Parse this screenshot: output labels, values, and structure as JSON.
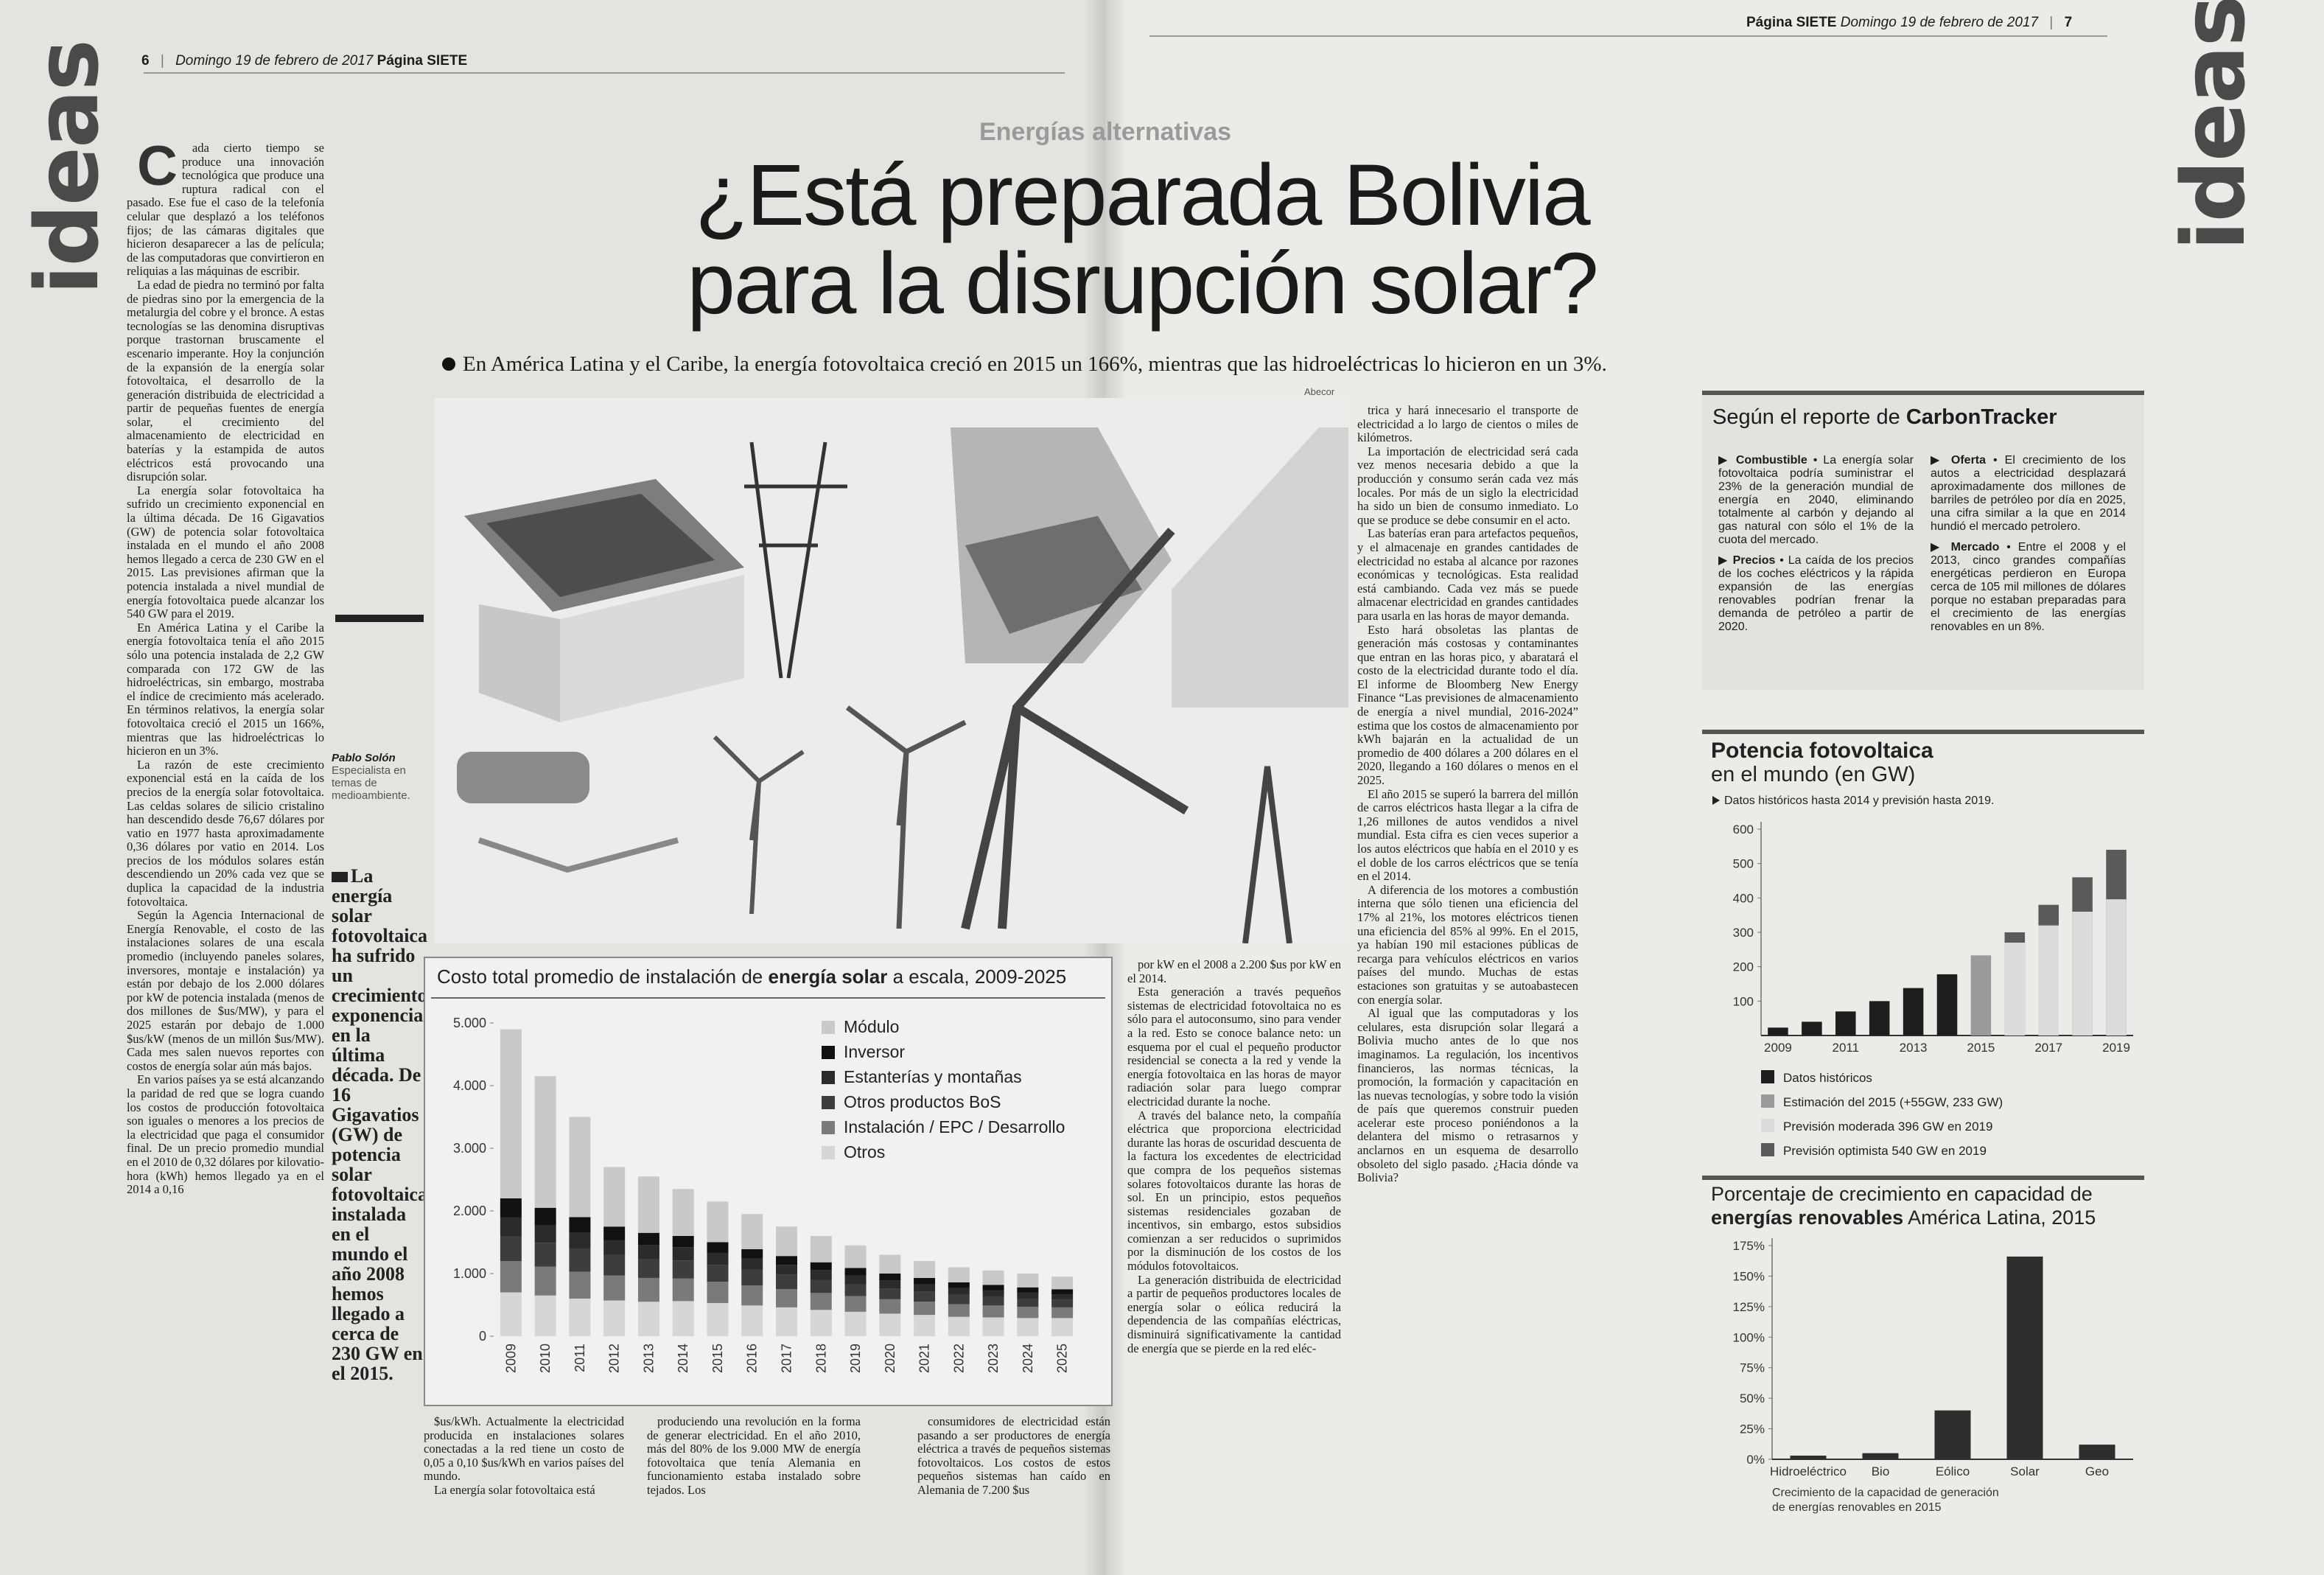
{
  "header_left": {
    "page": "6",
    "date": "Domingo 19 de febrero de 2017",
    "paper": "Página SIETE"
  },
  "header_right": {
    "paper": "Página SIETE",
    "date": "Domingo 19 de febrero de 2017",
    "page": "7"
  },
  "section": "ideas",
  "kicker": "Energías alternativas",
  "title": [
    "¿Está preparada Bolivia",
    "para la disrupción solar?"
  ],
  "subtitle": "En América Latina y el Caribe, la energía fotovoltaica creció en 2015 un 166%, mientras que las hidroeléctricas lo hicieron en un 3%.",
  "photo_credit": "Abecor",
  "author": {
    "name": "Pablo Solón",
    "role": "Especialista en temas de medioambiente."
  },
  "pull_quote": "La energía solar fotovoltaica ha sufrido un crecimiento exponencial en la última década. De 16 Gigavatios (GW) de potencia solar fotovoltaica instalada en el mundo el año 2008 hemos llegado a cerca de 230 GW en el 2015.",
  "columns": [
    [
      "Cada cierto tiempo se produce una innovación tecnológica que produce una ruptura radical con el pasado. Ese fue el caso de la telefonía celular que desplazó a los teléfonos fijos; de las cámaras digitales que hicieron desaparecer a las de película; de las computadoras que convirtieron en reliquias a las máquinas de escribir.",
      "La edad de piedra no terminó por falta de piedras sino por la emergencia de la metalurgia del cobre y el bronce. A estas tecnologías se las denomina disruptivas porque trastornan bruscamente el escenario imperante. Hoy la conjunción de la expansión de la energía solar fotovoltaica, el desarrollo de la generación distribuida de electricidad a partir de pequeñas fuentes de energía solar, el crecimiento del almacenamiento de electricidad en baterías y la estampida de autos eléctricos está provocando una disrupción solar.",
      "La energía solar fotovoltaica ha sufrido un crecimiento exponencial en la última década. De 16 Gigavatios (GW) de potencia solar fotovoltaica instalada en el mundo el año 2008 hemos llegado a cerca de 230 GW en el 2015. Las previsiones afirman que la potencia instalada a nivel mundial de energía fotovoltaica puede alcanzar los 540 GW para el 2019.",
      "En América Latina y el Caribe la energía fotovoltaica tenía el año 2015 sólo una potencia instalada de 2,2 GW comparada con 172 GW de las hidroeléctricas, sin embargo, mostraba el índice de crecimiento más acelerado. En términos relativos, la energía solar fotovoltaica creció el 2015 un 166%, mientras que las hidroeléctricas lo hicieron en un 3%.",
      "La razón de este crecimiento exponencial está en la caída de los precios de la energía solar fotovoltaica. Las celdas solares de silicio cristalino han descendido desde 76,67 dólares por vatio en 1977 hasta aproximadamente 0,36 dólares por vatio en 2014. Los precios de los módulos solares están descendiendo un 20% cada vez que se duplica la capacidad de la industria fotovoltaica.",
      "Según la Agencia Internacional de Energía Renovable, el costo de las instalaciones solares de una escala promedio (incluyendo paneles solares, inversores, montaje e instalación) ya están por debajo de los 2.000 dólares por kW de potencia instalada (menos de dos millones de $us/MW), y para el 2025 estarán por debajo de 1.000 $us/kW (menos de un millón $us/MW). Cada mes salen nuevos reportes con costos de energía solar aún más bajos.",
      "En varios países ya se está alcanzando la paridad de red que se logra cuando los costos de producción fotovoltaica son iguales o menores a los precios de la electricidad que paga el consumidor final. De un precio promedio mundial en el 2010 de 0,32 dólares por kilovatio-hora (kWh) hemos llegado ya en el 2014 a 0,16"
    ],
    [
      "$us/kWh. Actualmente la electricidad producida en instalaciones solares conectadas a la red tiene un costo de 0,05 a 0,10 $us/kWh en varios países del mundo.",
      "La energía solar fotovoltaica está"
    ],
    [
      "produciendo una revolución en la forma de generar electricidad. En el año 2010, más del 80% de los 9.000 MW de energía fotovoltaica que tenía Alemania en funcionamiento estaba instalado sobre tejados. Los"
    ],
    [
      "consumidores de electricidad están pasando a ser productores de energía eléctrica a través de pequeños sistemas fotovoltaicos. Los costos de estos pequeños sistemas han caído en Alemania de 7.200 $us"
    ],
    [
      "por kW en el 2008 a 2.200 $us por kW en el 2014.",
      "Esta generación a través pequeños sistemas de electricidad fotovoltaica no es sólo para el autoconsumo, sino para vender a la red. Esto se conoce balance neto: un esquema por el cual el pequeño productor residencial se conecta a la red y vende la energía fotovoltaica en las horas de mayor radiación solar para luego comprar electricidad durante la noche.",
      "A través del balance neto, la compañía eléctrica que proporciona electricidad durante las horas de oscuridad descuenta de la factura los excedentes de electricidad que compra de los pequeños sistemas solares fotovoltaicos durante las horas de sol. En un principio, estos pequeños sistemas residenciales gozaban de incentivos, sin embargo, estos subsidios comienzan a ser reducidos o suprimidos por la disminución de los costos de los módulos fotovoltaicos.",
      "La generación distribuida de electricidad a partir de pequeños productores locales de energía solar o eólica reducirá la dependencia de las compañías eléctricas, disminuirá significativamente la cantidad de energía que se pierde en la red eléc-"
    ],
    [
      "trica y hará innecesario el transporte de electricidad a lo largo de cientos o miles de kilómetros.",
      "La importación de electricidad será cada vez menos necesaria debido a que la producción y consumo serán cada vez más locales. Por más de un siglo la electricidad ha sido un bien de consumo inmediato. Lo que se produce se debe consumir en el acto.",
      "Las baterías eran para artefactos pequeños, y el almacenaje en grandes cantidades de electricidad no estaba al alcance por razones económicas y tecnológicas. Esta realidad está cambiando. Cada vez más se puede almacenar electricidad en grandes cantidades para usarla en las horas de mayor demanda.",
      "Esto hará obsoletas las plantas de generación más costosas y contaminantes que entran en las horas pico, y abaratará el costo de la electricidad durante todo el día. El informe de Bloomberg New Energy Finance “Las previsiones de almacenamiento de energía a nivel mundial, 2016-2024” estima que los costos de almacenamiento por kWh bajarán en la actualidad de un promedio de 400 dólares a 200 dólares en el 2020, llegando a 160 dólares o menos en el 2025.",
      "El año 2015 se superó la barrera del millón de carros eléctricos hasta llegar a la cifra de 1,26 millones de autos vendidos a nivel mundial. Esta cifra es cien veces superior a los autos eléctricos que había en el 2010 y es el doble de los carros eléctricos que se tenía en el 2014.",
      "A diferencia de los motores a combustión interna que sólo tienen una eficiencia del 17% al 21%, los motores eléctricos tienen una eficiencia del 85% al 99%. En el 2015, ya habían 190 mil estaciones públicas de recarga para vehículos eléctricos en varios países del mundo. Muchas de estas estaciones son gratuitas y se autoabastecen con energía solar.",
      "Al igual que las computadoras y los celulares, esta disrupción solar llegará a Bolivia mucho antes de lo que nos imaginamos. La regulación, los incentivos financieros, las normas técnicas, la promoción, la formación y capacitación en las nuevas tecnologías, y sobre todo la visión de país que queremos construir pueden acelerar este proceso poniéndonos a la delantera del mismo o retrasarnos y anclarnos en un esquema de desarrollo obsoleto del siglo pasado. ¿Hacia dónde va Bolivia?"
    ]
  ],
  "sidebar": {
    "title_prefix": "Según el reporte de",
    "title_brand": "CarbonTracker",
    "items": [
      {
        "label": "Combustible",
        "text": "La energía solar fotovoltaica podría suministrar el 23% de la generación mundial de energía en 2040, eliminando totalmente al carbón y dejando al gas natural con sólo el 1% de la cuota del mercado."
      },
      {
        "label": "Precios",
        "text": "La caída de los precios de los coches eléctricos y la rápida expansión de las energías renovables podrían frenar la demanda de petróleo a partir de 2020."
      },
      {
        "label": "Oferta",
        "text": "El crecimiento de los autos a electricidad desplazará aproximadamente dos millones de barriles de petróleo por día en 2025, una cifra similar a la que en 2014 hundió el mercado petrolero."
      },
      {
        "label": "Mercado",
        "text": "Entre el 2008 y el 2013, cinco grandes compañías energéticas perdieron en Europa cerca de 105 mil millones de dólares porque no estaban preparadas para el crecimiento de las energías renovables en un 8%."
      }
    ]
  },
  "chart_data": [
    {
      "type": "bar",
      "stacked": true,
      "title": [
        "Costo total promedio de instalación de ",
        "energía solar",
        " a escala, 2009-2025"
      ],
      "categories": [
        "2009",
        "2010",
        "2011",
        "2012",
        "2013",
        "2014",
        "2015",
        "2016",
        "2017",
        "2018",
        "2019",
        "2020",
        "2021",
        "2022",
        "2023",
        "2024",
        "2025"
      ],
      "series": [
        {
          "name": "Módulo",
          "color": "#c9c9c9",
          "values": [
            2700,
            2100,
            1600,
            950,
            900,
            750,
            650,
            560,
            470,
            420,
            360,
            300,
            270,
            240,
            230,
            220,
            200
          ]
        },
        {
          "name": "Inversor",
          "color": "#111111",
          "values": [
            300,
            280,
            250,
            220,
            200,
            180,
            170,
            150,
            140,
            130,
            120,
            110,
            100,
            90,
            90,
            80,
            80
          ]
        },
        {
          "name": "Estanterías y montañas",
          "color": "#2b2b2b",
          "values": [
            300,
            280,
            260,
            230,
            220,
            210,
            190,
            180,
            160,
            150,
            140,
            130,
            120,
            110,
            100,
            100,
            90
          ]
        },
        {
          "name": "Otros productos BoS",
          "color": "#3d3d3d",
          "values": [
            400,
            380,
            360,
            330,
            300,
            290,
            270,
            250,
            230,
            210,
            190,
            170,
            160,
            150,
            140,
            130,
            120
          ]
        },
        {
          "name": "Instalación / EPC / Desarrollo",
          "color": "#7a7a7a",
          "values": [
            500,
            460,
            430,
            400,
            380,
            360,
            340,
            320,
            290,
            270,
            250,
            230,
            210,
            200,
            190,
            180,
            170
          ]
        },
        {
          "name": "Otros",
          "color": "#d6d6d6",
          "values": [
            700,
            650,
            600,
            570,
            550,
            560,
            530,
            490,
            460,
            420,
            390,
            360,
            340,
            310,
            300,
            290,
            290
          ]
        }
      ],
      "ylim": [
        0,
        5000
      ],
      "yticks": [
        0,
        {
          "value": 1000,
          "label": "1.000"
        },
        {
          "value": 2000,
          "label": "2.000"
        },
        {
          "value": 3000,
          "label": "3.000"
        },
        {
          "value": 4000,
          "label": "4.000"
        },
        {
          "value": 5000,
          "label": "5.000"
        }
      ],
      "legend": "top-right"
    },
    {
      "type": "bar",
      "stacked": false,
      "title": "Potencia fotovoltaica",
      "subtitle": "en el mundo (en GW)",
      "note": "Datos históricos hasta 2014 y previsión hasta 2019.",
      "categories": [
        "2009",
        null,
        "2011",
        null,
        "2013",
        null,
        "2015",
        null,
        "2017",
        null,
        "2019"
      ],
      "series": [
        {
          "name": "Datos históricos",
          "color": "#1e1e1e",
          "values": [
            23,
            40,
            70,
            100,
            138,
            178,
            null,
            null,
            null,
            null,
            null
          ]
        },
        {
          "name": "Estimación del 2015 (+55GW, 233 GW)",
          "color": "#9a9a9a",
          "values": [
            null,
            null,
            null,
            null,
            null,
            null,
            233,
            null,
            null,
            null,
            null
          ]
        },
        {
          "name": "Previsión moderada 396 GW en 2019",
          "color": "#dcdcdc",
          "values": [
            null,
            null,
            null,
            null,
            null,
            null,
            null,
            270,
            320,
            360,
            396
          ]
        },
        {
          "name": "Previsión optimista 540 GW en 2019",
          "color": "#5a5a5a",
          "values": [
            null,
            null,
            null,
            null,
            null,
            null,
            null,
            300,
            380,
            460,
            540
          ]
        }
      ],
      "ylim": [
        0,
        600
      ],
      "yticks": [
        100,
        200,
        300,
        400,
        500,
        600
      ],
      "legend": "bottom"
    },
    {
      "type": "bar",
      "title": [
        "Porcentaje de crecimiento en capacidad de",
        "energías renovables",
        " América Latina, 2015"
      ],
      "categories": [
        "Hidroeléctrico",
        "Bio",
        "Eólico",
        "Solar",
        "Geo"
      ],
      "values": [
        3,
        5,
        40,
        166,
        12
      ],
      "color": "#2e2e2e",
      "ylim": [
        0,
        175
      ],
      "yticks": [
        {
          "value": 0,
          "label": "0%"
        },
        {
          "value": 25,
          "label": "25%"
        },
        {
          "value": 50,
          "label": "50%"
        },
        {
          "value": 75,
          "label": "75%"
        },
        {
          "value": 100,
          "label": "100%"
        },
        {
          "value": 125,
          "label": "125%"
        },
        {
          "value": 150,
          "label": "150%"
        },
        {
          "value": 175,
          "label": "175%"
        }
      ],
      "footer": [
        "Crecimiento de la capacidad de generación",
        "de energías renovables en 2015"
      ]
    }
  ]
}
